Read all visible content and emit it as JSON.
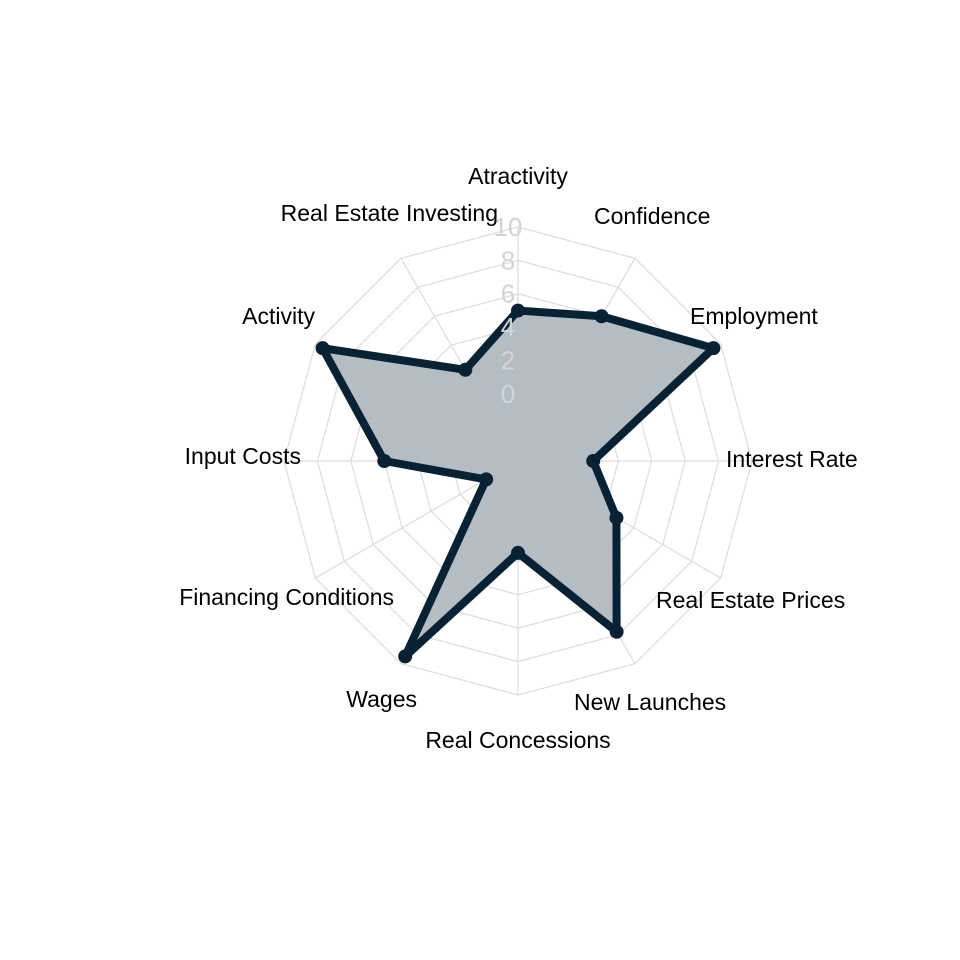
{
  "chart_data": {
    "type": "radar",
    "axes": [
      "Atractivity",
      "Confidence",
      "Employment",
      "Interest Rate",
      "Real Estate Prices",
      "New Launches",
      "Real Concessions",
      "Wages",
      "Financing Conditions",
      "Input Costs",
      "Activity",
      "Real Estate Investing"
    ],
    "ticks": [
      "0",
      "2",
      "4",
      "6",
      "8",
      "10"
    ],
    "rmin": -4,
    "rmax": 10,
    "grid": true,
    "series": [
      {
        "values": [
          5,
          6,
          9.5,
          0.5,
          2.8,
          7.8,
          1.5,
          9.5,
          -1.8,
          4,
          9.5,
          2.3
        ],
        "color": "#082234",
        "fill": "#b5bdc4"
      }
    ]
  }
}
